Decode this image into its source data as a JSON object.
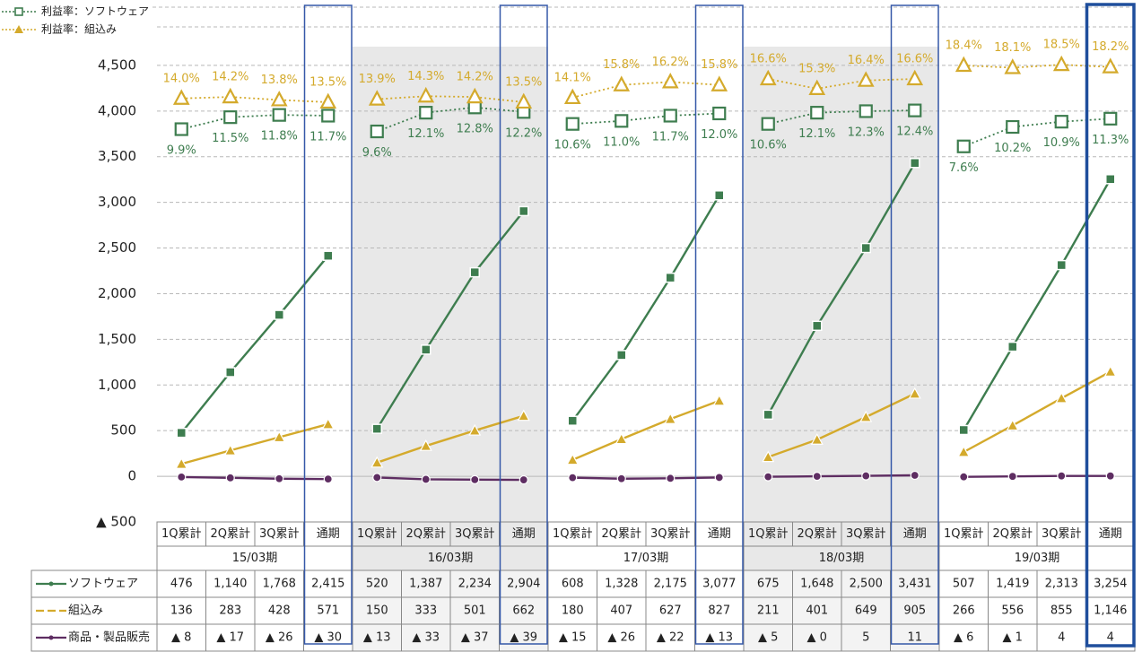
{
  "chart_data": {
    "type": "line",
    "categories": [
      "1Q累計",
      "2Q累計",
      "3Q累計",
      "通期",
      "1Q累計",
      "2Q累計",
      "3Q累計",
      "通期",
      "1Q累計",
      "2Q累計",
      "3Q累計",
      "通期",
      "1Q累計",
      "2Q累計",
      "3Q累計",
      "通期",
      "1Q累計",
      "2Q累計",
      "3Q累計",
      "通期"
    ],
    "periods": [
      "15/03期",
      "16/03期",
      "17/03期",
      "18/03期",
      "19/03期"
    ],
    "shaded": [
      false,
      true,
      false,
      true,
      false
    ],
    "ylim": [
      -500,
      5000
    ],
    "yticks": [
      {
        "value": -500,
        "label": "▲ 500"
      },
      0,
      500,
      {
        "value": 1000,
        "label": "1,000"
      },
      {
        "value": 1500,
        "label": "1,500"
      },
      {
        "value": 2000,
        "label": "2,000"
      },
      {
        "value": 2500,
        "label": "2,500"
      },
      {
        "value": 3000,
        "label": "3,000"
      },
      {
        "value": 3500,
        "label": "3,500"
      },
      {
        "value": 4000,
        "label": "4,000"
      },
      {
        "value": 4500,
        "label": "4,500"
      }
    ],
    "y2lim": [
      -42.5,
      24.5
    ],
    "grid": true,
    "series": [
      {
        "name": "ソフトウェア",
        "color": "#3e7d4f",
        "marker": "square",
        "values": [
          476,
          1140,
          1768,
          2415,
          520,
          1387,
          2234,
          2904,
          608,
          1328,
          2175,
          3077,
          675,
          1648,
          2500,
          3431,
          507,
          1419,
          2313,
          3254
        ],
        "value_labels": [
          "476",
          "1,140",
          "1,768",
          "2,415",
          "520",
          "1,387",
          "2,234",
          "2,904",
          "608",
          "1,328",
          "2,175",
          "3,077",
          "675",
          "1,648",
          "2,500",
          "3,431",
          "507",
          "1,419",
          "2,313",
          "3,254"
        ]
      },
      {
        "name": "組込み",
        "color": "#d4aa2c",
        "marker": "triangle",
        "values": [
          136,
          283,
          428,
          571,
          150,
          333,
          501,
          662,
          180,
          407,
          627,
          827,
          211,
          401,
          649,
          905,
          266,
          556,
          855,
          1146
        ],
        "value_labels": [
          "136",
          "283",
          "428",
          "571",
          "150",
          "333",
          "501",
          "662",
          "180",
          "407",
          "627",
          "827",
          "211",
          "401",
          "649",
          "905",
          "266",
          "556",
          "855",
          "1,146"
        ]
      },
      {
        "name": "商品・製品販売",
        "color": "#5e2d62",
        "marker": "circle",
        "values": [
          -8,
          -17,
          -26,
          -30,
          -13,
          -33,
          -37,
          -39,
          -15,
          -26,
          -22,
          -13,
          -5,
          0,
          5,
          11,
          -6,
          -1,
          4,
          4
        ],
        "value_labels": [
          "▲ 8",
          "▲ 17",
          "▲ 26",
          "▲ 30",
          "▲ 13",
          "▲ 33",
          "▲ 37",
          "▲ 39",
          "▲ 15",
          "▲ 26",
          "▲ 22",
          "▲ 13",
          "▲ 5",
          "▲ 0",
          "5",
          "11",
          "▲ 6",
          "▲ 1",
          "4",
          "4"
        ]
      },
      {
        "name": "利益率：ソフトウェア",
        "color": "#3e7d4f",
        "marker": "square-open",
        "axis": "y2",
        "line_style": "dotted",
        "label_position": "below",
        "values": [
          9.9,
          11.5,
          11.8,
          11.7,
          9.6,
          12.1,
          12.8,
          12.2,
          10.6,
          11.0,
          11.7,
          12.0,
          10.6,
          12.1,
          12.3,
          12.4,
          7.6,
          10.2,
          10.9,
          11.3
        ],
        "value_labels": [
          "9.9%",
          "11.5%",
          "11.8%",
          "11.7%",
          "9.6%",
          "12.1%",
          "12.8%",
          "12.2%",
          "10.6%",
          "11.0%",
          "11.7%",
          "12.0%",
          "10.6%",
          "12.1%",
          "12.3%",
          "12.4%",
          "7.6%",
          "10.2%",
          "10.9%",
          "11.3%"
        ]
      },
      {
        "name": "利益率：組込み",
        "color": "#d4aa2c",
        "marker": "triangle-open",
        "axis": "y2",
        "line_style": "dotted",
        "label_position": "above",
        "values": [
          14.0,
          14.2,
          13.8,
          13.5,
          13.9,
          14.3,
          14.2,
          13.5,
          14.1,
          15.8,
          16.2,
          15.8,
          16.6,
          15.3,
          16.4,
          16.6,
          18.4,
          18.1,
          18.5,
          18.2
        ],
        "value_labels": [
          "14.0%",
          "14.2%",
          "13.8%",
          "13.5%",
          "13.9%",
          "14.3%",
          "14.2%",
          "13.5%",
          "14.1%",
          "15.8%",
          "16.2%",
          "15.8%",
          "16.6%",
          "15.3%",
          "16.4%",
          "16.6%",
          "18.4%",
          "18.1%",
          "18.5%",
          "18.2%"
        ]
      }
    ]
  }
}
